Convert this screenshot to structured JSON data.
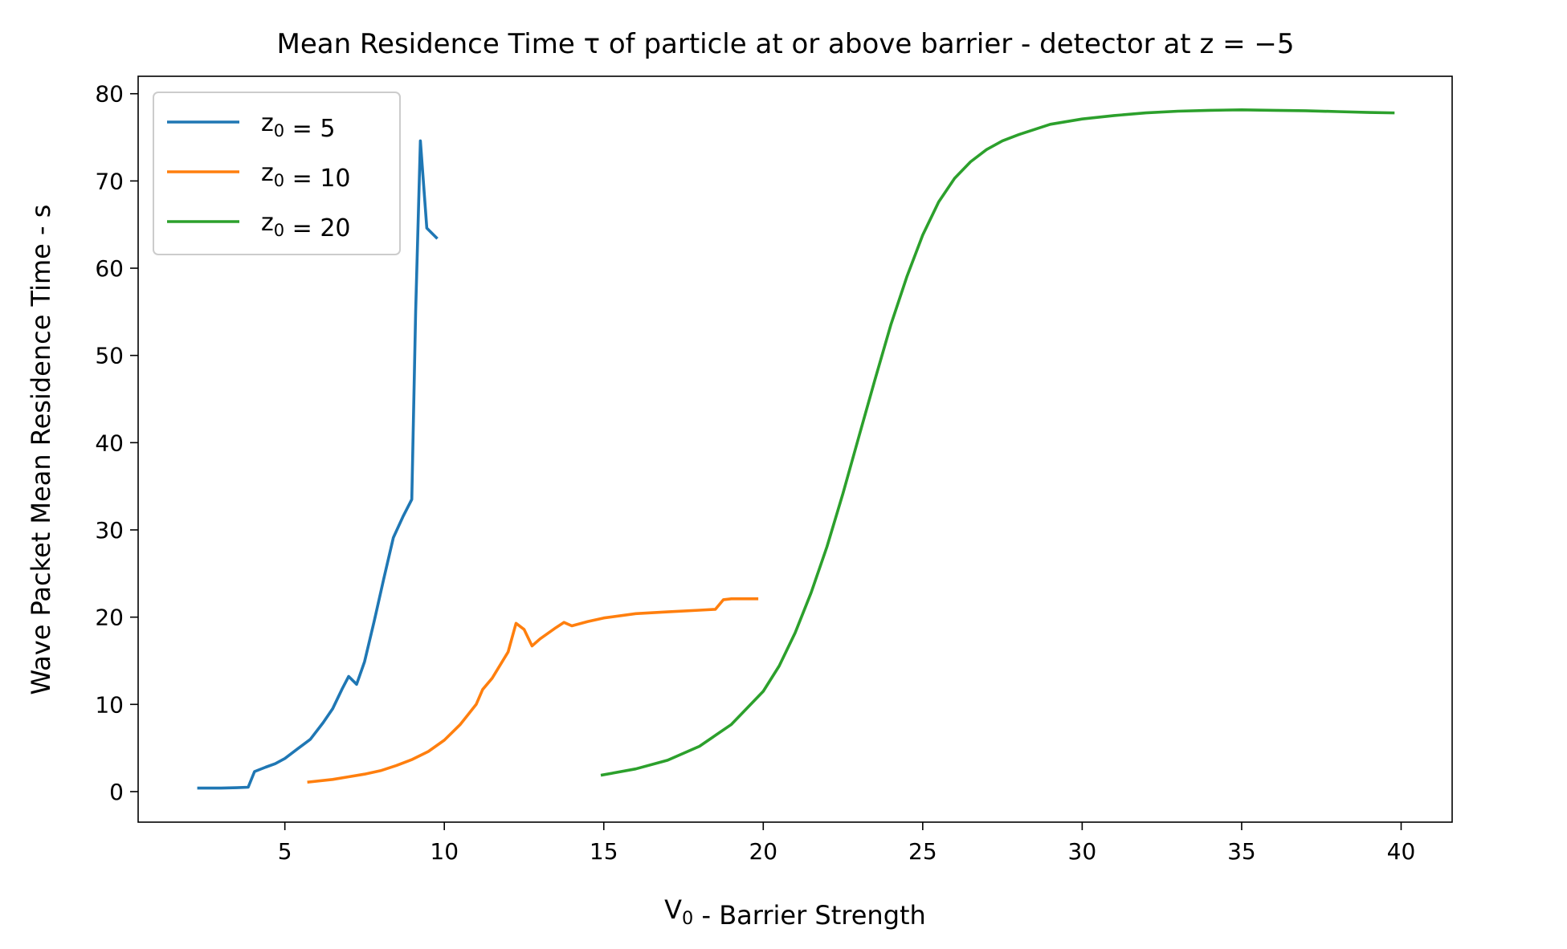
{
  "chart_data": {
    "type": "line",
    "title": "Mean Residence Time τ of particle at or above barrier - detector at z = −5",
    "xlabel": "V₀ - Barrier Strength",
    "ylabel": "Wave Packet Mean Residence Time - s",
    "xlim": [
      0.4,
      41.6
    ],
    "ylim": [
      -3.5,
      82
    ],
    "xticks": [
      5,
      10,
      15,
      20,
      25,
      30,
      35,
      40
    ],
    "yticks": [
      0,
      10,
      20,
      30,
      40,
      50,
      60,
      70,
      80
    ],
    "grid": false,
    "legend_position": "upper-left",
    "series": [
      {
        "name": "z₀ = 5",
        "color": "#1f77b4",
        "x": [
          2.3,
          3.0,
          3.5,
          3.85,
          4.05,
          4.4,
          4.7,
          5.0,
          5.4,
          5.8,
          6.2,
          6.5,
          6.8,
          7.0,
          7.25,
          7.5,
          7.8,
          8.1,
          8.4,
          8.7,
          8.98,
          9.1,
          9.25,
          9.45,
          9.75
        ],
        "y": [
          0.4,
          0.4,
          0.45,
          0.5,
          2.3,
          2.8,
          3.2,
          3.8,
          4.9,
          6.0,
          7.9,
          9.5,
          11.8,
          13.2,
          12.3,
          14.9,
          19.5,
          24.4,
          29.1,
          31.5,
          33.5,
          55.0,
          74.6,
          64.6,
          63.5
        ]
      },
      {
        "name": "z₀ = 10",
        "color": "#ff7f0e",
        "x": [
          5.75,
          6.5,
          7.0,
          7.5,
          8.0,
          8.5,
          9.0,
          9.5,
          10.0,
          10.5,
          11.0,
          11.2,
          11.5,
          12.0,
          12.25,
          12.5,
          12.75,
          13.0,
          13.5,
          13.75,
          14.0,
          14.5,
          15.0,
          16.0,
          17.0,
          18.0,
          18.5,
          18.75,
          19.0,
          19.8
        ],
        "y": [
          1.1,
          1.4,
          1.7,
          2.0,
          2.4,
          3.0,
          3.7,
          4.6,
          5.9,
          7.7,
          10.0,
          11.7,
          13.0,
          16.0,
          19.3,
          18.6,
          16.7,
          17.5,
          18.8,
          19.4,
          19.0,
          19.5,
          19.9,
          20.4,
          20.6,
          20.8,
          20.9,
          22.0,
          22.1,
          22.1
        ]
      },
      {
        "name": "z₀ = 20",
        "color": "#2ca02c",
        "x": [
          14.95,
          16.0,
          17.0,
          18.0,
          19.0,
          20.0,
          20.5,
          21.0,
          21.5,
          22.0,
          22.5,
          23.0,
          23.5,
          24.0,
          24.5,
          25.0,
          25.5,
          26.0,
          26.5,
          27.0,
          27.5,
          28.0,
          29.0,
          30.0,
          31.0,
          32.0,
          33.0,
          34.0,
          35.0,
          36.0,
          37.0,
          38.0,
          39.0,
          39.75
        ],
        "y": [
          1.9,
          2.6,
          3.6,
          5.2,
          7.7,
          11.5,
          14.4,
          18.2,
          22.8,
          28.1,
          34.2,
          40.7,
          47.2,
          53.5,
          59.0,
          63.8,
          67.6,
          70.3,
          72.2,
          73.6,
          74.6,
          75.3,
          76.5,
          77.1,
          77.5,
          77.8,
          78.0,
          78.1,
          78.15,
          78.1,
          78.05,
          77.95,
          77.85,
          77.8
        ]
      }
    ]
  }
}
